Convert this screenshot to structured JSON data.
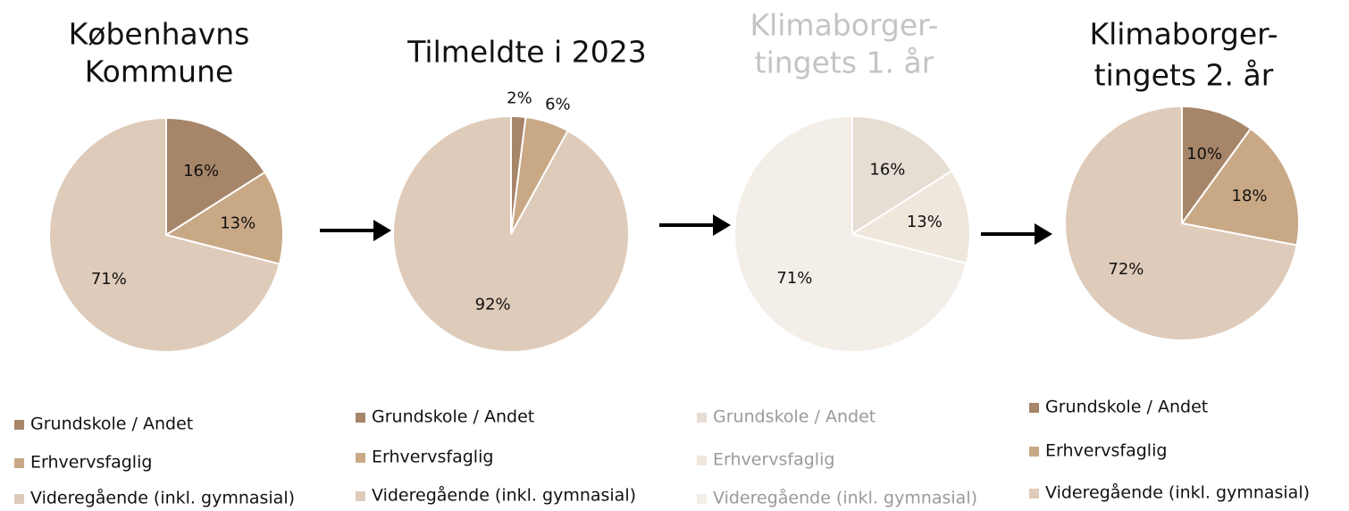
{
  "chart_data": [
    {
      "type": "pie",
      "title": [
        "Københavns",
        "Kommune"
      ],
      "categories": [
        "Grundskole / Andet",
        "Erhvervsfaglig",
        "Videregående (inkl. gymnasial)"
      ],
      "values": [
        16,
        13,
        71
      ],
      "value_labels": [
        "16%",
        "13%",
        "71%"
      ],
      "colors": [
        "#a68569",
        "#c9a886",
        "#dfcbba"
      ]
    },
    {
      "type": "pie",
      "title": [
        "Tilmeldte i 2023"
      ],
      "categories": [
        "Grundskole / Andet",
        "Erhvervsfaglig",
        "Videregående (inkl. gymnasial)"
      ],
      "values": [
        2,
        6,
        92
      ],
      "value_labels": [
        "2%",
        "6%",
        "92%"
      ],
      "colors": [
        "#a68569",
        "#c9a886",
        "#dfcbba"
      ]
    },
    {
      "type": "pie",
      "title": [
        "Klimaborger-",
        "tingets 1. år"
      ],
      "categories": [
        "Grundskole / Andet",
        "Erhvervsfaglig",
        "Videregående (inkl. gymnasial)"
      ],
      "values": [
        16,
        13,
        71
      ],
      "value_labels": [
        "16%",
        "13%",
        "71%"
      ],
      "colors": [
        "#e6ddd3",
        "#efe6dc",
        "#f4eee8"
      ]
    },
    {
      "type": "pie",
      "title": [
        "Klimaborger-",
        "tingets 2. år"
      ],
      "categories": [
        "Grundskole / Andet",
        "Erhvervsfaglig",
        "Videregående (inkl. gymnasial)"
      ],
      "values": [
        10,
        18,
        72
      ],
      "value_labels": [
        "10%",
        "18%",
        "72%"
      ],
      "colors": [
        "#a68569",
        "#c9a886",
        "#dfcbba"
      ]
    }
  ]
}
